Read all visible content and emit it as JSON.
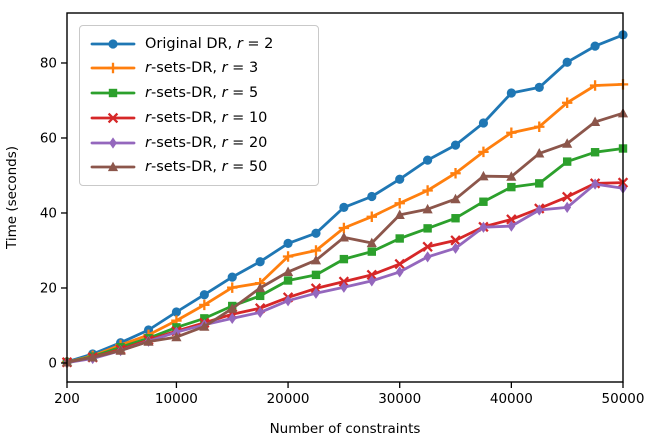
{
  "figure": {
    "background": "#ffffff",
    "axis_color": "#000000"
  },
  "chart_data": {
    "type": "line",
    "title": "",
    "xlabel": "Number of constraints",
    "ylabel": "Time (seconds)",
    "xlim": [
      200,
      50000
    ],
    "ylim": [
      -5.07,
      93.33
    ],
    "xticks": [
      200,
      10000,
      20000,
      30000,
      40000,
      50000
    ],
    "yticks": [
      0,
      20,
      40,
      60,
      80
    ],
    "grid": false,
    "legend_position": "upper-left",
    "x": [
      200,
      2500,
      5000,
      7500,
      10000,
      12500,
      15000,
      17500,
      20000,
      22500,
      25000,
      27500,
      30000,
      32500,
      35000,
      37500,
      40000,
      42500,
      45000,
      47500,
      50000
    ],
    "series": [
      {
        "name": "Original DR, r = 2",
        "legend_segments": [
          {
            "text": "Original DR, ",
            "italic": false
          },
          {
            "text": "r",
            "italic": true
          },
          {
            "text": " = 2",
            "italic": false
          }
        ],
        "color": "#1f77b4",
        "marker": "circle",
        "values": [
          0.3,
          2.4,
          5.4,
          8.8,
          13.6,
          18.2,
          22.9,
          27.0,
          31.9,
          34.6,
          41.5,
          44.4,
          49.0,
          54.1,
          58.1,
          64.0,
          72.0,
          73.5,
          80.2,
          84.5,
          87.5
        ]
      },
      {
        "name": "r-sets-DR, r = 3",
        "legend_segments": [
          {
            "text": "r",
            "italic": true
          },
          {
            "text": "-sets-DR, ",
            "italic": false
          },
          {
            "text": "r",
            "italic": true
          },
          {
            "text": " = 3",
            "italic": false
          }
        ],
        "color": "#ff7f0e",
        "marker": "plus",
        "values": [
          0.2,
          1.9,
          4.8,
          7.5,
          11.3,
          15.5,
          20.1,
          21.3,
          28.4,
          30.0,
          36.0,
          39.0,
          42.6,
          46.0,
          50.6,
          56.3,
          61.4,
          63.0,
          69.4,
          74.0,
          74.3
        ]
      },
      {
        "name": "r-sets-DR, r = 5",
        "legend_segments": [
          {
            "text": "r",
            "italic": true
          },
          {
            "text": "-sets-DR, ",
            "italic": false
          },
          {
            "text": "r",
            "italic": true
          },
          {
            "text": " = 5",
            "italic": false
          }
        ],
        "color": "#2ca02c",
        "marker": "square",
        "values": [
          0.2,
          1.7,
          4.2,
          6.6,
          9.5,
          11.9,
          15.2,
          17.9,
          22.0,
          23.5,
          27.7,
          29.7,
          33.2,
          35.9,
          38.6,
          43.0,
          46.9,
          47.9,
          53.7,
          56.2,
          57.2
        ]
      },
      {
        "name": "r-sets-DR, r = 10",
        "legend_segments": [
          {
            "text": "r",
            "italic": true
          },
          {
            "text": "-sets-DR, ",
            "italic": false
          },
          {
            "text": "r",
            "italic": true
          },
          {
            "text": " = 10",
            "italic": false
          }
        ],
        "color": "#d62728",
        "marker": "x",
        "values": [
          0.2,
          1.5,
          3.6,
          6.1,
          8.5,
          10.7,
          13.0,
          14.6,
          17.5,
          19.9,
          21.7,
          23.5,
          26.4,
          31.0,
          32.7,
          36.3,
          38.3,
          41.2,
          44.3,
          47.9,
          48.1
        ]
      },
      {
        "name": "r-sets-DR, r = 20",
        "legend_segments": [
          {
            "text": "r",
            "italic": true
          },
          {
            "text": "-sets-DR, ",
            "italic": false
          },
          {
            "text": "r",
            "italic": true
          },
          {
            "text": " = 20",
            "italic": false
          }
        ],
        "color": "#9467bd",
        "marker": "diamond",
        "values": [
          0.1,
          1.2,
          3.3,
          5.8,
          8.2,
          10.2,
          11.9,
          13.5,
          16.6,
          18.6,
          20.2,
          21.9,
          24.3,
          28.3,
          30.6,
          36.2,
          36.5,
          40.8,
          41.5,
          47.7,
          46.6
        ]
      },
      {
        "name": "r-sets-DR, r = 50",
        "legend_segments": [
          {
            "text": "r",
            "italic": true
          },
          {
            "text": "-sets-DR, ",
            "italic": false
          },
          {
            "text": "r",
            "italic": true
          },
          {
            "text": " = 50",
            "italic": false
          }
        ],
        "color": "#8c564b",
        "marker": "triangle-up",
        "values": [
          0.2,
          1.5,
          3.3,
          5.7,
          6.9,
          9.7,
          14.5,
          20.0,
          24.3,
          27.4,
          33.5,
          32.0,
          39.5,
          41.0,
          43.7,
          49.8,
          49.7,
          55.9,
          58.5,
          64.3,
          66.6
        ]
      }
    ]
  }
}
